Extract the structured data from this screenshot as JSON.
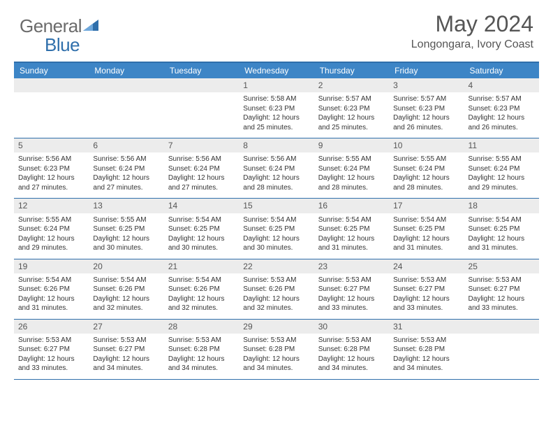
{
  "brand": {
    "part1": "General",
    "part2": "Blue"
  },
  "title": "May 2024",
  "location": "Longongara, Ivory Coast",
  "colors": {
    "header_bg": "#3d85c6",
    "border": "#2f6fab",
    "daynum_bg": "#ececec",
    "text": "#333333",
    "title_text": "#555555"
  },
  "day_headers": [
    "Sunday",
    "Monday",
    "Tuesday",
    "Wednesday",
    "Thursday",
    "Friday",
    "Saturday"
  ],
  "weeks": [
    [
      null,
      null,
      null,
      {
        "n": "1",
        "sr": "5:58 AM",
        "ss": "6:23 PM",
        "dl": "12 hours and 25 minutes."
      },
      {
        "n": "2",
        "sr": "5:57 AM",
        "ss": "6:23 PM",
        "dl": "12 hours and 25 minutes."
      },
      {
        "n": "3",
        "sr": "5:57 AM",
        "ss": "6:23 PM",
        "dl": "12 hours and 26 minutes."
      },
      {
        "n": "4",
        "sr": "5:57 AM",
        "ss": "6:23 PM",
        "dl": "12 hours and 26 minutes."
      }
    ],
    [
      {
        "n": "5",
        "sr": "5:56 AM",
        "ss": "6:23 PM",
        "dl": "12 hours and 27 minutes."
      },
      {
        "n": "6",
        "sr": "5:56 AM",
        "ss": "6:24 PM",
        "dl": "12 hours and 27 minutes."
      },
      {
        "n": "7",
        "sr": "5:56 AM",
        "ss": "6:24 PM",
        "dl": "12 hours and 27 minutes."
      },
      {
        "n": "8",
        "sr": "5:56 AM",
        "ss": "6:24 PM",
        "dl": "12 hours and 28 minutes."
      },
      {
        "n": "9",
        "sr": "5:55 AM",
        "ss": "6:24 PM",
        "dl": "12 hours and 28 minutes."
      },
      {
        "n": "10",
        "sr": "5:55 AM",
        "ss": "6:24 PM",
        "dl": "12 hours and 28 minutes."
      },
      {
        "n": "11",
        "sr": "5:55 AM",
        "ss": "6:24 PM",
        "dl": "12 hours and 29 minutes."
      }
    ],
    [
      {
        "n": "12",
        "sr": "5:55 AM",
        "ss": "6:24 PM",
        "dl": "12 hours and 29 minutes."
      },
      {
        "n": "13",
        "sr": "5:55 AM",
        "ss": "6:25 PM",
        "dl": "12 hours and 30 minutes."
      },
      {
        "n": "14",
        "sr": "5:54 AM",
        "ss": "6:25 PM",
        "dl": "12 hours and 30 minutes."
      },
      {
        "n": "15",
        "sr": "5:54 AM",
        "ss": "6:25 PM",
        "dl": "12 hours and 30 minutes."
      },
      {
        "n": "16",
        "sr": "5:54 AM",
        "ss": "6:25 PM",
        "dl": "12 hours and 31 minutes."
      },
      {
        "n": "17",
        "sr": "5:54 AM",
        "ss": "6:25 PM",
        "dl": "12 hours and 31 minutes."
      },
      {
        "n": "18",
        "sr": "5:54 AM",
        "ss": "6:25 PM",
        "dl": "12 hours and 31 minutes."
      }
    ],
    [
      {
        "n": "19",
        "sr": "5:54 AM",
        "ss": "6:26 PM",
        "dl": "12 hours and 31 minutes."
      },
      {
        "n": "20",
        "sr": "5:54 AM",
        "ss": "6:26 PM",
        "dl": "12 hours and 32 minutes."
      },
      {
        "n": "21",
        "sr": "5:54 AM",
        "ss": "6:26 PM",
        "dl": "12 hours and 32 minutes."
      },
      {
        "n": "22",
        "sr": "5:53 AM",
        "ss": "6:26 PM",
        "dl": "12 hours and 32 minutes."
      },
      {
        "n": "23",
        "sr": "5:53 AM",
        "ss": "6:27 PM",
        "dl": "12 hours and 33 minutes."
      },
      {
        "n": "24",
        "sr": "5:53 AM",
        "ss": "6:27 PM",
        "dl": "12 hours and 33 minutes."
      },
      {
        "n": "25",
        "sr": "5:53 AM",
        "ss": "6:27 PM",
        "dl": "12 hours and 33 minutes."
      }
    ],
    [
      {
        "n": "26",
        "sr": "5:53 AM",
        "ss": "6:27 PM",
        "dl": "12 hours and 33 minutes."
      },
      {
        "n": "27",
        "sr": "5:53 AM",
        "ss": "6:27 PM",
        "dl": "12 hours and 34 minutes."
      },
      {
        "n": "28",
        "sr": "5:53 AM",
        "ss": "6:28 PM",
        "dl": "12 hours and 34 minutes."
      },
      {
        "n": "29",
        "sr": "5:53 AM",
        "ss": "6:28 PM",
        "dl": "12 hours and 34 minutes."
      },
      {
        "n": "30",
        "sr": "5:53 AM",
        "ss": "6:28 PM",
        "dl": "12 hours and 34 minutes."
      },
      {
        "n": "31",
        "sr": "5:53 AM",
        "ss": "6:28 PM",
        "dl": "12 hours and 34 minutes."
      },
      null
    ]
  ],
  "labels": {
    "sunrise": "Sunrise: ",
    "sunset": "Sunset: ",
    "daylight": "Daylight: "
  }
}
